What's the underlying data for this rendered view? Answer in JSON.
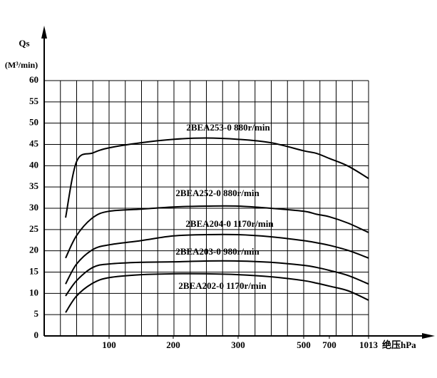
{
  "chart_data": {
    "type": "line",
    "y_label": "Qs",
    "y_unit": "(M³/min)",
    "x_label": "绝压hPa",
    "xlim": [
      0,
      1013
    ],
    "xticks": [
      100,
      200,
      300,
      500,
      700,
      1013
    ],
    "ylim": [
      0,
      60
    ],
    "yticks": [
      0,
      5,
      10,
      15,
      20,
      25,
      30,
      35,
      40,
      45,
      50,
      55,
      60
    ],
    "grid": true,
    "x": [
      33,
      50,
      75,
      100,
      150,
      200,
      250,
      300,
      400,
      500,
      600,
      700,
      850,
      1013
    ],
    "series": [
      {
        "name": "2BEA253-0 880r/min",
        "color": "#000000",
        "values": [
          27.8,
          41,
          43,
          44.2,
          45.4,
          46.2,
          46.5,
          46.2,
          45.4,
          43.5,
          42.9,
          41.7,
          39.9,
          37
        ]
      },
      {
        "name": "2BEA252-0 880r/min",
        "color": "#000000",
        "values": [
          18.3,
          23.6,
          27.8,
          29.3,
          29.8,
          30.3,
          30.5,
          30.5,
          30,
          29.3,
          28.6,
          28,
          26.5,
          24.3
        ]
      },
      {
        "name": "2BEA204-0 1170r/min",
        "color": "#000000",
        "values": [
          12.2,
          16.9,
          20.3,
          21.4,
          22.4,
          23.5,
          23.8,
          23.8,
          23.3,
          22.4,
          21.9,
          21.3,
          20.1,
          18.3
        ]
      },
      {
        "name": "2BEA203-0 980r/min",
        "color": "#000000",
        "values": [
          9.4,
          13,
          16.1,
          16.9,
          17.3,
          17.4,
          17.6,
          17.6,
          17.3,
          16.6,
          16.1,
          15.4,
          14.2,
          12.2
        ]
      },
      {
        "name": "2BEA202-0 1170r/min",
        "color": "#000000",
        "values": [
          5.5,
          9.4,
          12.4,
          13.7,
          14.4,
          14.6,
          14.6,
          14.4,
          13.9,
          13,
          12.4,
          11.7,
          10.6,
          8.4
        ]
      }
    ]
  }
}
